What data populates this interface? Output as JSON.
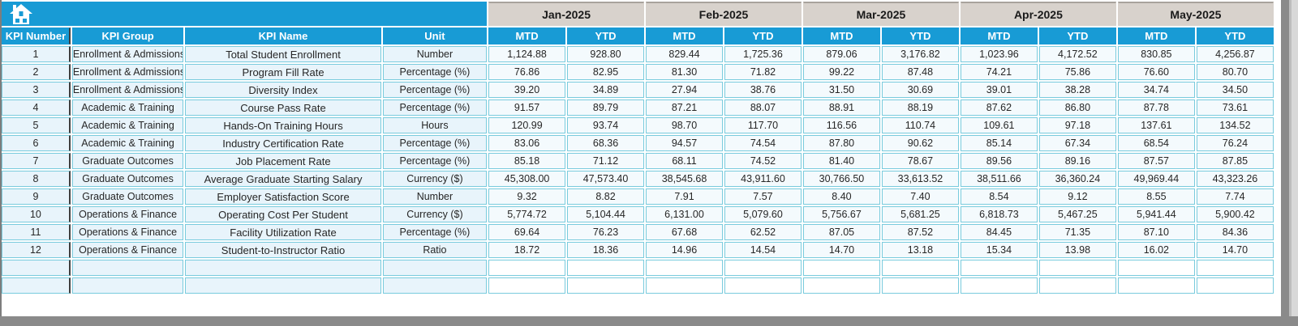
{
  "chrome": {
    "home_icon": "home-icon",
    "accent_blue": "#189bd5",
    "month_band_bg": "#d8d2cc",
    "left_pane_fill": "#e8f4fb",
    "grid_border_teal": "#79cbdd",
    "window_edge_gray": "#8a8a8a"
  },
  "table": {
    "fixed_headers": [
      "KPI Number",
      "KPI Group",
      "KPI Name",
      "Unit"
    ],
    "months": [
      "Jan-2025",
      "Feb-2025",
      "Mar-2025",
      "Apr-2025",
      "May-2025"
    ],
    "sub_headers": [
      "MTD",
      "YTD"
    ],
    "empty_rows": 2,
    "rows": [
      {
        "number": "1",
        "group": "Enrollment & Admissions",
        "name": "Total Student Enrollment",
        "unit": "Number",
        "values": [
          "1,124.88",
          "928.80",
          "829.44",
          "1,725.36",
          "879.06",
          "3,176.82",
          "1,023.96",
          "4,172.52",
          "830.85",
          "4,256.87"
        ]
      },
      {
        "number": "2",
        "group": "Enrollment & Admissions",
        "name": "Program Fill Rate",
        "unit": "Percentage (%)",
        "values": [
          "76.86",
          "82.95",
          "81.30",
          "71.82",
          "99.22",
          "87.48",
          "74.21",
          "75.86",
          "76.60",
          "80.70"
        ]
      },
      {
        "number": "3",
        "group": "Enrollment & Admissions",
        "name": "Diversity Index",
        "unit": "Percentage (%)",
        "values": [
          "39.20",
          "34.89",
          "27.94",
          "38.76",
          "31.50",
          "30.69",
          "39.01",
          "38.28",
          "34.74",
          "34.50"
        ]
      },
      {
        "number": "4",
        "group": "Academic & Training",
        "name": "Course Pass Rate",
        "unit": "Percentage (%)",
        "values": [
          "91.57",
          "89.79",
          "87.21",
          "88.07",
          "88.91",
          "88.19",
          "87.62",
          "86.80",
          "87.78",
          "73.61"
        ]
      },
      {
        "number": "5",
        "group": "Academic & Training",
        "name": "Hands-On Training Hours",
        "unit": "Hours",
        "values": [
          "120.99",
          "93.74",
          "98.70",
          "117.70",
          "116.56",
          "110.74",
          "109.61",
          "97.18",
          "137.61",
          "134.52"
        ]
      },
      {
        "number": "6",
        "group": "Academic & Training",
        "name": "Industry Certification Rate",
        "unit": "Percentage (%)",
        "values": [
          "83.06",
          "68.36",
          "94.57",
          "74.54",
          "87.80",
          "90.62",
          "85.14",
          "67.34",
          "68.54",
          "76.24"
        ]
      },
      {
        "number": "7",
        "group": "Graduate Outcomes",
        "name": "Job Placement Rate",
        "unit": "Percentage (%)",
        "values": [
          "85.18",
          "71.12",
          "68.11",
          "74.52",
          "81.40",
          "78.67",
          "89.56",
          "89.16",
          "87.57",
          "87.85"
        ]
      },
      {
        "number": "8",
        "group": "Graduate Outcomes",
        "name": "Average Graduate Starting Salary",
        "unit": "Currency ($)",
        "values": [
          "45,308.00",
          "47,573.40",
          "38,545.68",
          "43,911.60",
          "30,766.50",
          "33,613.52",
          "38,511.66",
          "36,360.24",
          "49,969.44",
          "43,323.26"
        ]
      },
      {
        "number": "9",
        "group": "Graduate Outcomes",
        "name": "Employer Satisfaction Score",
        "unit": "Number",
        "values": [
          "9.32",
          "8.82",
          "7.91",
          "7.57",
          "8.40",
          "7.40",
          "8.54",
          "9.12",
          "8.55",
          "7.74"
        ]
      },
      {
        "number": "10",
        "group": "Operations & Finance",
        "name": "Operating Cost Per Student",
        "unit": "Currency ($)",
        "values": [
          "5,774.72",
          "5,104.44",
          "6,131.00",
          "5,079.60",
          "5,756.67",
          "5,681.25",
          "6,818.73",
          "5,467.25",
          "5,941.44",
          "5,900.42"
        ]
      },
      {
        "number": "11",
        "group": "Operations & Finance",
        "name": "Facility Utilization Rate",
        "unit": "Percentage (%)",
        "values": [
          "69.64",
          "76.23",
          "67.68",
          "62.52",
          "87.05",
          "87.52",
          "84.45",
          "71.35",
          "87.10",
          "84.36"
        ]
      },
      {
        "number": "12",
        "group": "Operations & Finance",
        "name": "Student-to-Instructor Ratio",
        "unit": "Ratio",
        "values": [
          "18.72",
          "18.36",
          "14.96",
          "14.54",
          "14.70",
          "13.18",
          "15.34",
          "13.98",
          "16.02",
          "14.70"
        ]
      }
    ]
  }
}
